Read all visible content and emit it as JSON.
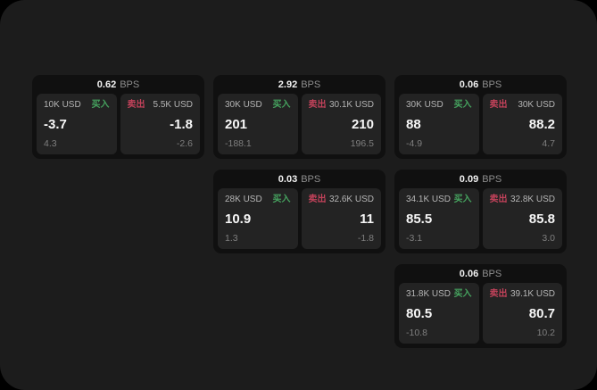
{
  "labels": {
    "bps": "BPS",
    "buy": "买入",
    "sell": "卖出"
  },
  "colors": {
    "page_bg": "#1c1c1c",
    "outer_bg": "#000000",
    "card_bg": "#101010",
    "panel_bg": "#232323",
    "buy_green": "#46a35f",
    "sell_red": "#c2425a"
  },
  "cards": [
    {
      "row": 1,
      "col": 1,
      "bps": "0.62",
      "buy": {
        "amount": "10K USD",
        "value": "-3.7",
        "sub": "4.3"
      },
      "sell": {
        "amount": "5.5K USD",
        "value": "-1.8",
        "sub": "-2.6"
      }
    },
    {
      "row": 1,
      "col": 2,
      "bps": "2.92",
      "buy": {
        "amount": "30K USD",
        "value": "201",
        "sub": "-188.1"
      },
      "sell": {
        "amount": "30.1K USD",
        "value": "210",
        "sub": "196.5"
      }
    },
    {
      "row": 1,
      "col": 3,
      "bps": "0.06",
      "buy": {
        "amount": "30K USD",
        "value": "88",
        "sub": "-4.9"
      },
      "sell": {
        "amount": "30K USD",
        "value": "88.2",
        "sub": "4.7"
      }
    },
    {
      "row": 2,
      "col": 2,
      "bps": "0.03",
      "buy": {
        "amount": "28K USD",
        "value": "10.9",
        "sub": "1.3"
      },
      "sell": {
        "amount": "32.6K USD",
        "value": "11",
        "sub": "-1.8"
      }
    },
    {
      "row": 2,
      "col": 3,
      "bps": "0.09",
      "buy": {
        "amount": "34.1K USD",
        "value": "85.5",
        "sub": "-3.1"
      },
      "sell": {
        "amount": "32.8K USD",
        "value": "85.8",
        "sub": "3.0"
      }
    },
    {
      "row": 3,
      "col": 3,
      "bps": "0.06",
      "buy": {
        "amount": "31.8K USD",
        "value": "80.5",
        "sub": "-10.8"
      },
      "sell": {
        "amount": "39.1K USD",
        "value": "80.7",
        "sub": "10.2"
      }
    }
  ]
}
